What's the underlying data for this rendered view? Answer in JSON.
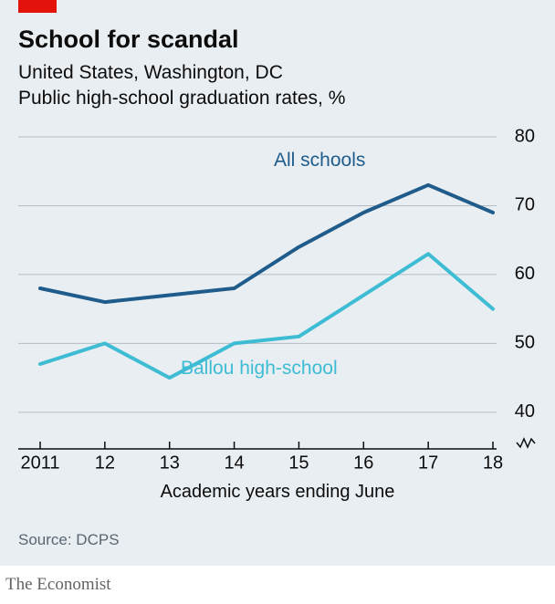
{
  "title": "School for scandal",
  "subtitle": "United States, Washington, DC",
  "subtitle2": "Public high-school graduation rates, %",
  "x_axis_title": "Academic years ending June",
  "source": "Source: DCPS",
  "attribution": "The Economist",
  "colors": {
    "background": "#e9eef2",
    "red_tab": "#e3120b",
    "text": "#0c0c0c",
    "grid": "#b4bdc5",
    "series_all": "#1f5c8b",
    "series_ballou": "#3dbcd3",
    "source_text": "#596571",
    "attribution_text": "#646464"
  },
  "fontsize": {
    "title": 27,
    "subtitle": 21,
    "axis_label": 20,
    "ticks": 20,
    "series_label": 21,
    "source": 17,
    "attribution": 19
  },
  "chart": {
    "type": "line",
    "x_categories": [
      "2011",
      "12",
      "13",
      "14",
      "15",
      "16",
      "17",
      "18"
    ],
    "y_ticks": [
      40,
      50,
      60,
      70,
      80
    ],
    "ylim": [
      36,
      80
    ],
    "line_width": 4,
    "series": [
      {
        "name": "All schools",
        "label": "All schools",
        "label_x": 280,
        "label_y": 42,
        "color": "#1f5c8b",
        "values": [
          58,
          56,
          57,
          58,
          64,
          69,
          73,
          69
        ]
      },
      {
        "name": "Ballou high-school",
        "label": "Ballou high-school",
        "label_x": 178,
        "label_y": 270,
        "color": "#3dbcd3",
        "values": [
          47,
          50,
          45,
          50,
          51,
          57,
          63,
          55
        ]
      }
    ]
  },
  "layout": {
    "plot_left_pad": 24,
    "plot_right_pad": 48,
    "plot_top_pad": 10,
    "plot_bottom_pad": 28
  }
}
